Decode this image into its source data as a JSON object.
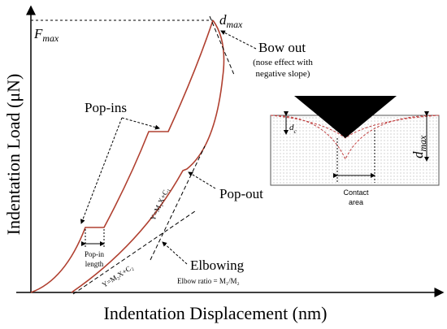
{
  "axes": {
    "y_label": "Indentation Load (μN)",
    "x_label": "Indentation Displacement (nm)"
  },
  "markers": {
    "f_max": {
      "main": "F",
      "sub": "max"
    },
    "d_max": {
      "main": "d",
      "sub": "max"
    }
  },
  "annotations": {
    "bow_out": "Bow out",
    "bow_out_note_1": "(nose effect with",
    "bow_out_note_2": "negative slope)",
    "pop_ins": "Pop-ins",
    "pop_out": "Pop-out",
    "pop_in_length_1": "Pop-in",
    "pop_in_length_2": "length",
    "elbowing": "Elbowing",
    "elbow_ratio": "Elbow ratio = M₁/M₂",
    "line_1": "Y=M₁X+C₁",
    "line_2": "Y=M₂X+C₂"
  },
  "inset": {
    "d_c": {
      "main": "d",
      "sub": "c"
    },
    "d_max": {
      "main": "d",
      "sub": "max"
    },
    "contact_area_1": "Contact",
    "contact_area_2": "area"
  }
}
